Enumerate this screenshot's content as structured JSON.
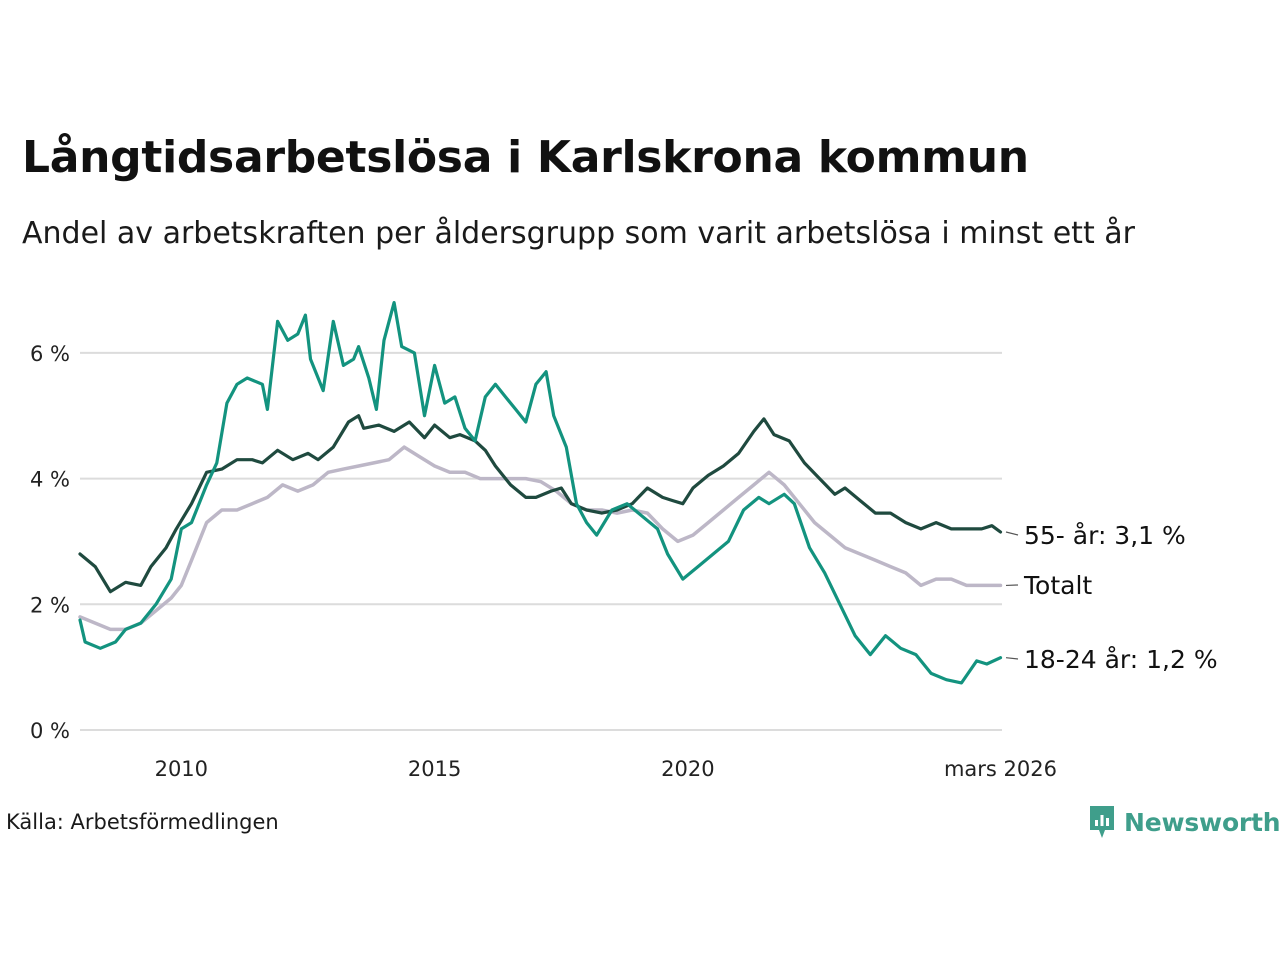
{
  "header": {
    "title": "Långtidsarbetslösa i Karlskrona kommun",
    "subtitle": "Andel av arbetskraften per åldersgrupp som varit arbetslösa i minst ett år"
  },
  "footer": {
    "source": "Källa: Arbetsförmedlingen",
    "brand": "Newsworthy"
  },
  "colors": {
    "age_55": "#1f4a3f",
    "total": "#bdb7c7",
    "age_18_24": "#13937f",
    "grid": "#dcdcdc",
    "brand": "#3f9e8b"
  },
  "chart_data": {
    "type": "line",
    "title": "Långtidsarbetslösa i Karlskrona kommun",
    "xlabel": "",
    "ylabel": "",
    "xlim": [
      2008.0,
      2026.2
    ],
    "ylim": [
      0,
      7
    ],
    "grid": true,
    "x_ticks": [
      {
        "value": 2010,
        "label": "2010"
      },
      {
        "value": 2015,
        "label": "2015"
      },
      {
        "value": 2020,
        "label": "2020"
      },
      {
        "value": 2026.17,
        "label": "mars 2026"
      }
    ],
    "y_ticks": [
      {
        "value": 0,
        "label": "0 %"
      },
      {
        "value": 2,
        "label": "2 %"
      },
      {
        "value": 4,
        "label": "4 %"
      },
      {
        "value": 6,
        "label": "6 %"
      }
    ],
    "series": [
      {
        "key": "age_55",
        "name": "55- år",
        "end_label": "55- år: 3,1 %",
        "points": [
          [
            2008.0,
            2.8
          ],
          [
            2008.3,
            2.6
          ],
          [
            2008.6,
            2.2
          ],
          [
            2008.9,
            2.35
          ],
          [
            2009.2,
            2.3
          ],
          [
            2009.4,
            2.6
          ],
          [
            2009.7,
            2.9
          ],
          [
            2009.9,
            3.2
          ],
          [
            2010.2,
            3.6
          ],
          [
            2010.5,
            4.1
          ],
          [
            2010.8,
            4.15
          ],
          [
            2011.1,
            4.3
          ],
          [
            2011.4,
            4.3
          ],
          [
            2011.6,
            4.25
          ],
          [
            2011.9,
            4.45
          ],
          [
            2012.2,
            4.3
          ],
          [
            2012.5,
            4.4
          ],
          [
            2012.7,
            4.3
          ],
          [
            2013.0,
            4.5
          ],
          [
            2013.3,
            4.9
          ],
          [
            2013.5,
            5.0
          ],
          [
            2013.6,
            4.8
          ],
          [
            2013.9,
            4.85
          ],
          [
            2014.2,
            4.75
          ],
          [
            2014.5,
            4.9
          ],
          [
            2014.8,
            4.65
          ],
          [
            2015.0,
            4.85
          ],
          [
            2015.3,
            4.65
          ],
          [
            2015.5,
            4.7
          ],
          [
            2015.8,
            4.6
          ],
          [
            2016.0,
            4.45
          ],
          [
            2016.2,
            4.2
          ],
          [
            2016.5,
            3.9
          ],
          [
            2016.8,
            3.7
          ],
          [
            2017.0,
            3.7
          ],
          [
            2017.3,
            3.8
          ],
          [
            2017.5,
            3.85
          ],
          [
            2017.7,
            3.6
          ],
          [
            2018.0,
            3.5
          ],
          [
            2018.3,
            3.45
          ],
          [
            2018.6,
            3.5
          ],
          [
            2018.9,
            3.6
          ],
          [
            2019.2,
            3.85
          ],
          [
            2019.5,
            3.7
          ],
          [
            2019.7,
            3.65
          ],
          [
            2019.9,
            3.6
          ],
          [
            2020.1,
            3.85
          ],
          [
            2020.4,
            4.05
          ],
          [
            2020.7,
            4.2
          ],
          [
            2021.0,
            4.4
          ],
          [
            2021.3,
            4.75
          ],
          [
            2021.5,
            4.95
          ],
          [
            2021.7,
            4.7
          ],
          [
            2022.0,
            4.6
          ],
          [
            2022.3,
            4.25
          ],
          [
            2022.6,
            4.0
          ],
          [
            2022.9,
            3.75
          ],
          [
            2023.1,
            3.85
          ],
          [
            2023.4,
            3.65
          ],
          [
            2023.7,
            3.45
          ],
          [
            2024.0,
            3.45
          ],
          [
            2024.3,
            3.3
          ],
          [
            2024.6,
            3.2
          ],
          [
            2024.9,
            3.3
          ],
          [
            2025.2,
            3.2
          ],
          [
            2025.5,
            3.2
          ],
          [
            2025.8,
            3.2
          ],
          [
            2026.0,
            3.25
          ],
          [
            2026.17,
            3.15
          ]
        ]
      },
      {
        "key": "total",
        "name": "Totalt",
        "end_label": "Totalt",
        "points": [
          [
            2008.0,
            1.8
          ],
          [
            2008.3,
            1.7
          ],
          [
            2008.6,
            1.6
          ],
          [
            2008.9,
            1.6
          ],
          [
            2009.2,
            1.7
          ],
          [
            2009.5,
            1.9
          ],
          [
            2009.8,
            2.1
          ],
          [
            2010.0,
            2.3
          ],
          [
            2010.2,
            2.7
          ],
          [
            2010.5,
            3.3
          ],
          [
            2010.8,
            3.5
          ],
          [
            2011.1,
            3.5
          ],
          [
            2011.4,
            3.6
          ],
          [
            2011.7,
            3.7
          ],
          [
            2012.0,
            3.9
          ],
          [
            2012.3,
            3.8
          ],
          [
            2012.6,
            3.9
          ],
          [
            2012.9,
            4.1
          ],
          [
            2013.2,
            4.15
          ],
          [
            2013.5,
            4.2
          ],
          [
            2013.8,
            4.25
          ],
          [
            2014.1,
            4.3
          ],
          [
            2014.4,
            4.5
          ],
          [
            2014.7,
            4.35
          ],
          [
            2015.0,
            4.2
          ],
          [
            2015.3,
            4.1
          ],
          [
            2015.6,
            4.1
          ],
          [
            2015.9,
            4.0
          ],
          [
            2016.2,
            4.0
          ],
          [
            2016.5,
            4.0
          ],
          [
            2016.8,
            4.0
          ],
          [
            2017.1,
            3.95
          ],
          [
            2017.4,
            3.8
          ],
          [
            2017.7,
            3.6
          ],
          [
            2018.0,
            3.5
          ],
          [
            2018.3,
            3.5
          ],
          [
            2018.6,
            3.45
          ],
          [
            2018.9,
            3.5
          ],
          [
            2019.2,
            3.45
          ],
          [
            2019.5,
            3.2
          ],
          [
            2019.8,
            3.0
          ],
          [
            2020.1,
            3.1
          ],
          [
            2020.4,
            3.3
          ],
          [
            2020.7,
            3.5
          ],
          [
            2021.0,
            3.7
          ],
          [
            2021.3,
            3.9
          ],
          [
            2021.6,
            4.1
          ],
          [
            2021.9,
            3.9
          ],
          [
            2022.2,
            3.6
          ],
          [
            2022.5,
            3.3
          ],
          [
            2022.8,
            3.1
          ],
          [
            2023.1,
            2.9
          ],
          [
            2023.4,
            2.8
          ],
          [
            2023.7,
            2.7
          ],
          [
            2024.0,
            2.6
          ],
          [
            2024.3,
            2.5
          ],
          [
            2024.6,
            2.3
          ],
          [
            2024.9,
            2.4
          ],
          [
            2025.2,
            2.4
          ],
          [
            2025.5,
            2.3
          ],
          [
            2025.8,
            2.3
          ],
          [
            2026.17,
            2.3
          ]
        ]
      },
      {
        "key": "age_18_24",
        "name": "18-24 år",
        "end_label": "18-24 år: 1,2 %",
        "points": [
          [
            2008.0,
            1.75
          ],
          [
            2008.1,
            1.4
          ],
          [
            2008.4,
            1.3
          ],
          [
            2008.7,
            1.4
          ],
          [
            2008.9,
            1.6
          ],
          [
            2009.2,
            1.7
          ],
          [
            2009.5,
            2.0
          ],
          [
            2009.8,
            2.4
          ],
          [
            2010.0,
            3.2
          ],
          [
            2010.2,
            3.3
          ],
          [
            2010.5,
            3.9
          ],
          [
            2010.7,
            4.25
          ],
          [
            2010.9,
            5.2
          ],
          [
            2011.1,
            5.5
          ],
          [
            2011.3,
            5.6
          ],
          [
            2011.6,
            5.5
          ],
          [
            2011.7,
            5.1
          ],
          [
            2011.9,
            6.5
          ],
          [
            2012.1,
            6.2
          ],
          [
            2012.3,
            6.3
          ],
          [
            2012.45,
            6.6
          ],
          [
            2012.55,
            5.9
          ],
          [
            2012.8,
            5.4
          ],
          [
            2013.0,
            6.5
          ],
          [
            2013.2,
            5.8
          ],
          [
            2013.4,
            5.9
          ],
          [
            2013.5,
            6.1
          ],
          [
            2013.7,
            5.6
          ],
          [
            2013.85,
            5.1
          ],
          [
            2014.0,
            6.2
          ],
          [
            2014.2,
            6.8
          ],
          [
            2014.35,
            6.1
          ],
          [
            2014.6,
            6.0
          ],
          [
            2014.8,
            5.0
          ],
          [
            2015.0,
            5.8
          ],
          [
            2015.2,
            5.2
          ],
          [
            2015.4,
            5.3
          ],
          [
            2015.6,
            4.8
          ],
          [
            2015.8,
            4.6
          ],
          [
            2016.0,
            5.3
          ],
          [
            2016.2,
            5.5
          ],
          [
            2016.4,
            5.3
          ],
          [
            2016.6,
            5.1
          ],
          [
            2016.8,
            4.9
          ],
          [
            2017.0,
            5.5
          ],
          [
            2017.2,
            5.7
          ],
          [
            2017.35,
            5.0
          ],
          [
            2017.6,
            4.5
          ],
          [
            2017.8,
            3.6
          ],
          [
            2018.0,
            3.3
          ],
          [
            2018.2,
            3.1
          ],
          [
            2018.5,
            3.5
          ],
          [
            2018.8,
            3.6
          ],
          [
            2019.1,
            3.4
          ],
          [
            2019.4,
            3.2
          ],
          [
            2019.6,
            2.8
          ],
          [
            2019.9,
            2.4
          ],
          [
            2020.2,
            2.6
          ],
          [
            2020.5,
            2.8
          ],
          [
            2020.8,
            3.0
          ],
          [
            2021.1,
            3.5
          ],
          [
            2021.4,
            3.7
          ],
          [
            2021.6,
            3.6
          ],
          [
            2021.9,
            3.75
          ],
          [
            2022.1,
            3.6
          ],
          [
            2022.4,
            2.9
          ],
          [
            2022.7,
            2.5
          ],
          [
            2023.0,
            2.0
          ],
          [
            2023.3,
            1.5
          ],
          [
            2023.6,
            1.2
          ],
          [
            2023.9,
            1.5
          ],
          [
            2024.2,
            1.3
          ],
          [
            2024.5,
            1.2
          ],
          [
            2024.8,
            0.9
          ],
          [
            2025.1,
            0.8
          ],
          [
            2025.4,
            0.75
          ],
          [
            2025.7,
            1.1
          ],
          [
            2025.9,
            1.05
          ],
          [
            2026.17,
            1.15
          ]
        ]
      }
    ]
  }
}
